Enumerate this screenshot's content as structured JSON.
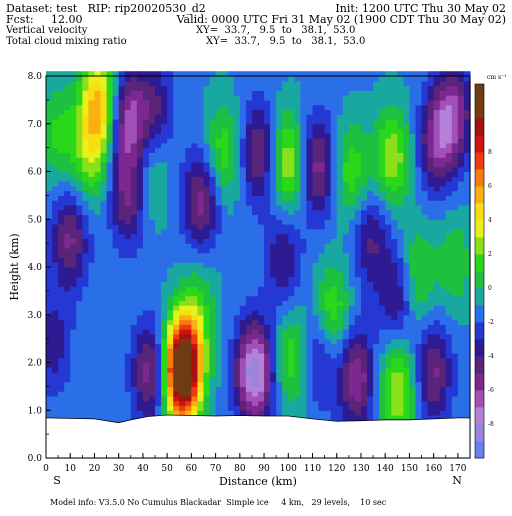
{
  "header": {
    "dataset_line": "Dataset: test   RIP: rip20020530_d2",
    "init_line": "Init: 1200 UTC Thu 30 May 02",
    "fcst_line": "Fcst:     12.00",
    "valid_line": "Valid: 0000 UTC Fri 31 May 02 (1900 CDT Thu 30 May 02)",
    "field1_name": "Vertical velocity",
    "field1_xy": "XY=  33.7,   9.5  to   38.1,  53.0",
    "field2_name": "Total cloud mixing ratio",
    "field2_xy": "XY=  33.7,   9.5  to   38.1,  53.0"
  },
  "footer": {
    "model_info": "Model info: V3.5.0 No Cumulus Blackadar  Simple ice     4 km,   29 levels,    10 sec",
    "left_end": "S",
    "right_end": "N"
  },
  "colors": {
    "terrain_fill": "#ffffff"
  },
  "chart_data": {
    "type": "heatmap",
    "title": "Vertical velocity",
    "xlabel": "Distance (km)",
    "ylabel": "Height (km)",
    "xlim": [
      0,
      175
    ],
    "ylim": [
      0,
      8
    ],
    "xticks": [
      "0",
      "10",
      "20",
      "30",
      "40",
      "50",
      "60",
      "70",
      "80",
      "90",
      "100",
      "110",
      "120",
      "130",
      "140",
      "150",
      "160",
      "170"
    ],
    "yticks": [
      "0.0",
      "1.0",
      "2.0",
      "3.0",
      "4.0",
      "5.0",
      "6.0",
      "7.0",
      "8.0"
    ],
    "colorbar": {
      "unit": "cm s⁻¹",
      "levels": [
        -10,
        -9,
        -8,
        -7,
        -6,
        -5,
        -4,
        -3,
        -2,
        -1,
        0,
        1,
        2,
        3,
        4,
        5,
        6,
        7,
        8,
        9,
        10,
        11
      ],
      "labeled_levels": [
        "8",
        "6",
        "4",
        "2",
        "0",
        "-2",
        "-4",
        "-6",
        "-8"
      ],
      "colors": [
        "#6a7ff0",
        "#9a84e0",
        "#b382d8",
        "#a050b8",
        "#7d2890",
        "#5a2478",
        "#2e1a92",
        "#2538d4",
        "#2a6fe8",
        "#19a8a0",
        "#1fc040",
        "#2ad81a",
        "#8ce01a",
        "#e6f21a",
        "#fadc10",
        "#fab010",
        "#f57a10",
        "#ee3a10",
        "#d21010",
        "#a51010",
        "#7a3a10",
        "#6e3c14"
      ]
    },
    "terrain": [
      {
        "x": 0,
        "h": 0.84
      },
      {
        "x": 10,
        "h": 0.83
      },
      {
        "x": 20,
        "h": 0.82
      },
      {
        "x": 30,
        "h": 0.74
      },
      {
        "x": 35,
        "h": 0.8
      },
      {
        "x": 42,
        "h": 0.87
      },
      {
        "x": 50,
        "h": 0.9
      },
      {
        "x": 60,
        "h": 0.89
      },
      {
        "x": 70,
        "h": 0.88
      },
      {
        "x": 80,
        "h": 0.89
      },
      {
        "x": 90,
        "h": 0.88
      },
      {
        "x": 100,
        "h": 0.88
      },
      {
        "x": 110,
        "h": 0.82
      },
      {
        "x": 120,
        "h": 0.77
      },
      {
        "x": 130,
        "h": 0.78
      },
      {
        "x": 140,
        "h": 0.8
      },
      {
        "x": 150,
        "h": 0.8
      },
      {
        "x": 160,
        "h": 0.82
      },
      {
        "x": 170,
        "h": 0.84
      },
      {
        "x": 175,
        "h": 0.84
      }
    ],
    "features": [
      {
        "x": 22,
        "z": 7.5,
        "w": 3.0
      },
      {
        "x": 18,
        "z": 6.4,
        "w": 1.8
      },
      {
        "x": 10,
        "z": 4.6,
        "w": -2.0
      },
      {
        "x": 5,
        "z": 6.8,
        "w": 1.2
      },
      {
        "x": 3,
        "z": 2.4,
        "w": -1.2
      },
      {
        "x": 34,
        "z": 7.1,
        "w": -2.6
      },
      {
        "x": 34,
        "z": 5.5,
        "w": -2.0
      },
      {
        "x": 45,
        "z": 7.3,
        "w": -1.5
      },
      {
        "x": 43,
        "z": 6.0,
        "w": 1.0
      },
      {
        "x": 43,
        "z": 1.8,
        "w": -2.2
      },
      {
        "x": 57,
        "z": 2.0,
        "w": 4.5
      },
      {
        "x": 56,
        "z": 1.7,
        "w": 3.5
      },
      {
        "x": 64,
        "z": 5.4,
        "w": -2.2
      },
      {
        "x": 63,
        "z": 3.2,
        "w": 1.0
      },
      {
        "x": 73,
        "z": 6.4,
        "w": 1.5
      },
      {
        "x": 86,
        "z": 1.8,
        "w": -3.8
      },
      {
        "x": 88,
        "z": 6.4,
        "w": -2.0
      },
      {
        "x": 100,
        "z": 6.2,
        "w": 2.2
      },
      {
        "x": 98,
        "z": 4.2,
        "w": -1.4
      },
      {
        "x": 102,
        "z": 2.1,
        "w": 1.5
      },
      {
        "x": 112,
        "z": 6.1,
        "w": -2.2
      },
      {
        "x": 113,
        "z": 2.2,
        "w": -1.5
      },
      {
        "x": 118,
        "z": 3.0,
        "w": 1.8
      },
      {
        "x": 126,
        "z": 6.0,
        "w": 1.5
      },
      {
        "x": 128,
        "z": 1.7,
        "w": -2.4
      },
      {
        "x": 134,
        "z": 4.6,
        "w": -1.5
      },
      {
        "x": 143,
        "z": 6.3,
        "w": 2.0
      },
      {
        "x": 145,
        "z": 1.4,
        "w": 2.2
      },
      {
        "x": 145,
        "z": 3.4,
        "w": -1.6
      },
      {
        "x": 153,
        "z": 3.8,
        "w": 1.4
      },
      {
        "x": 161,
        "z": 6.6,
        "w": -2.0
      },
      {
        "x": 160,
        "z": 1.8,
        "w": -2.0
      },
      {
        "x": 168,
        "z": 7.2,
        "w": -2.4
      },
      {
        "x": 169,
        "z": 4.1,
        "w": 1.0
      }
    ]
  }
}
